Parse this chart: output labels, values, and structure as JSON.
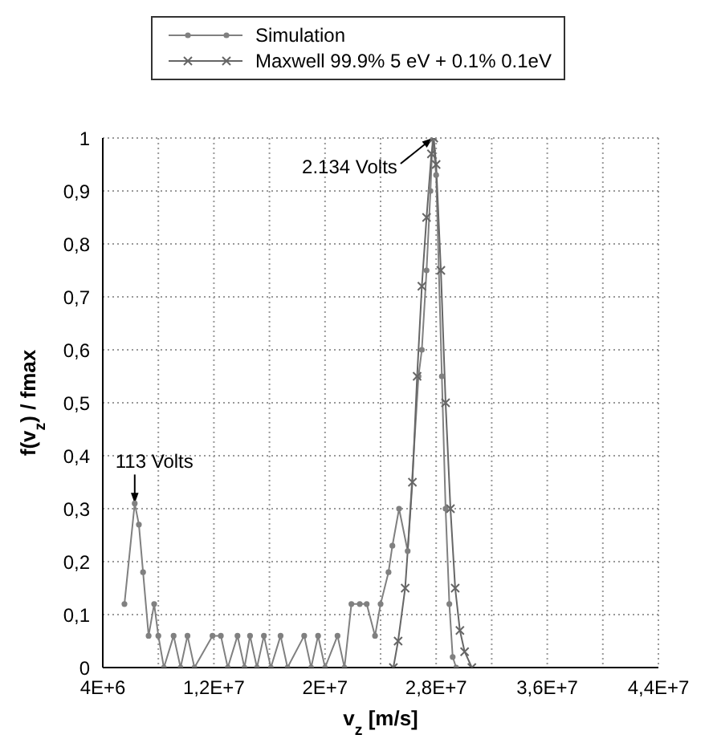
{
  "chart_data": {
    "type": "line",
    "xlabel": "v$_{z}$ [m/s]",
    "ylabel": "f(v$_{z}$) / fmax",
    "xlim": [
      4000000,
      44000000
    ],
    "xticks": [
      {
        "value": 4000000,
        "label": "4E+6"
      },
      {
        "value": 8000000,
        "label": null
      },
      {
        "value": 12000000,
        "label": "1,2E+7"
      },
      {
        "value": 16000000,
        "label": null
      },
      {
        "value": 20000000,
        "label": "2E+7"
      },
      {
        "value": 24000000,
        "label": null
      },
      {
        "value": 28000000,
        "label": "2,8E+7"
      },
      {
        "value": 32000000,
        "label": null
      },
      {
        "value": 36000000,
        "label": "3,6E+7"
      },
      {
        "value": 40000000,
        "label": null
      },
      {
        "value": 44000000,
        "label": "4,4E+7"
      }
    ],
    "ylim": [
      0,
      1
    ],
    "yticks": [
      0,
      {
        "value": 0.1,
        "label": "0,1"
      },
      {
        "value": 0.2,
        "label": "0,2"
      },
      {
        "value": 0.3,
        "label": "0,3"
      },
      {
        "value": 0.4,
        "label": "0,4"
      },
      {
        "value": 0.5,
        "label": "0,5"
      },
      {
        "value": 0.6,
        "label": "0,6"
      },
      {
        "value": 0.7,
        "label": "0,7"
      },
      {
        "value": 0.8,
        "label": "0,8"
      },
      {
        "value": 0.9,
        "label": "0,9"
      },
      1
    ],
    "grid": true,
    "legend": "top",
    "line_style": "solid",
    "series": [
      {
        "name": "Simulation",
        "color": "#808080",
        "marker": "circle",
        "x": [
          5560000,
          6300000,
          6600000,
          6900000,
          7300000,
          7700000,
          8000000,
          8400000,
          9100000,
          9600000,
          10100000,
          10600000,
          11900000,
          12500000,
          13000000,
          13700000,
          14200000,
          14600000,
          15100000,
          15600000,
          16100000,
          16800000,
          17300000,
          18500000,
          19000000,
          19500000,
          20000000,
          20900000,
          21400000,
          21900000,
          22500000,
          23000000,
          23600000,
          24000000,
          24570000,
          24850000,
          25330000,
          25950000,
          26730000,
          26970000,
          27310000,
          27590000,
          27750000,
          28000000,
          28410000,
          28680000,
          28950000,
          29190000,
          29440000
        ],
        "values": [
          0.12,
          0.31,
          0.27,
          0.18,
          0.06,
          0.12,
          0.06,
          0,
          0.06,
          0,
          0.06,
          0,
          0.06,
          0.06,
          0,
          0.06,
          0,
          0.06,
          0,
          0.06,
          0,
          0.06,
          0,
          0.06,
          0,
          0.06,
          0,
          0.06,
          0,
          0.12,
          0.12,
          0.12,
          0.06,
          0.12,
          0.18,
          0.23,
          0.3,
          0.22,
          0.55,
          0.6,
          0.75,
          0.9,
          1,
          0.93,
          0.55,
          0.3,
          0.12,
          0.02,
          0
        ]
      },
      {
        "name": "Maxwell 99.9% 5 eV + 0.1% 0.1eV",
        "color": "#666666",
        "marker": "cross",
        "x": [
          24920000,
          25260000,
          25770000,
          26290000,
          26630000,
          26970000,
          27310000,
          27660000,
          27830000,
          28000000,
          28340000,
          28680000,
          29030000,
          29370000,
          29710000,
          30050000,
          30570000
        ],
        "values": [
          0,
          0.05,
          0.15,
          0.35,
          0.55,
          0.72,
          0.85,
          0.97,
          1,
          0.95,
          0.75,
          0.5,
          0.3,
          0.15,
          0.07,
          0.03,
          0
        ]
      }
    ],
    "annotations": [
      {
        "text": "113 Volts",
        "x": 6300000,
        "y": 0.31
      },
      {
        "text": "2.134 Volts",
        "x": 27750000,
        "y": 1
      }
    ]
  }
}
